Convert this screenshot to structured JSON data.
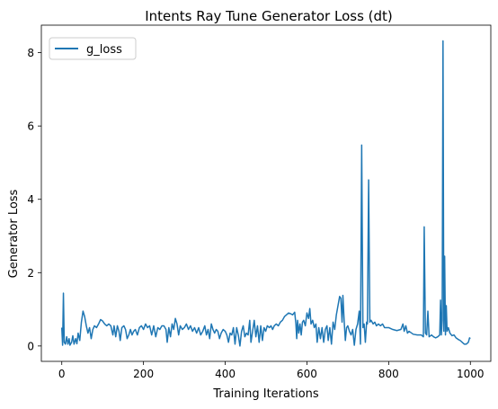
{
  "chart_data": {
    "type": "line",
    "title": "Intents Ray Tune Generator Loss (dt)",
    "xlabel": "Training Iterations",
    "ylabel": "Generator Loss",
    "xlim": [
      -50,
      1050
    ],
    "ylim": [
      -0.42,
      8.75
    ],
    "xticks": [
      0,
      200,
      400,
      600,
      800,
      1000
    ],
    "yticks": [
      0,
      2,
      4,
      6,
      8
    ],
    "grid": false,
    "legend_position": "top-left",
    "series": [
      {
        "name": "g_loss",
        "color": "#1f77b4",
        "points": [
          [
            0,
            0.5
          ],
          [
            2,
            0.02
          ],
          [
            4,
            1.44
          ],
          [
            6,
            0.1
          ],
          [
            9,
            0.05
          ],
          [
            12,
            0.25
          ],
          [
            15,
            0.05
          ],
          [
            18,
            0.2
          ],
          [
            20,
            0.02
          ],
          [
            24,
            0.1
          ],
          [
            27,
            0.28
          ],
          [
            30,
            0.05
          ],
          [
            34,
            0.2
          ],
          [
            37,
            0.06
          ],
          [
            40,
            0.35
          ],
          [
            44,
            0.15
          ],
          [
            48,
            0.65
          ],
          [
            52,
            0.95
          ],
          [
            56,
            0.8
          ],
          [
            60,
            0.55
          ],
          [
            64,
            0.35
          ],
          [
            68,
            0.5
          ],
          [
            72,
            0.2
          ],
          [
            76,
            0.45
          ],
          [
            80,
            0.55
          ],
          [
            85,
            0.5
          ],
          [
            90,
            0.6
          ],
          [
            95,
            0.72
          ],
          [
            100,
            0.68
          ],
          [
            105,
            0.6
          ],
          [
            110,
            0.55
          ],
          [
            115,
            0.6
          ],
          [
            120,
            0.55
          ],
          [
            125,
            0.3
          ],
          [
            128,
            0.55
          ],
          [
            132,
            0.25
          ],
          [
            136,
            0.55
          ],
          [
            140,
            0.4
          ],
          [
            143,
            0.15
          ],
          [
            147,
            0.5
          ],
          [
            152,
            0.55
          ],
          [
            156,
            0.45
          ],
          [
            160,
            0.2
          ],
          [
            164,
            0.3
          ],
          [
            168,
            0.45
          ],
          [
            172,
            0.3
          ],
          [
            176,
            0.4
          ],
          [
            180,
            0.45
          ],
          [
            185,
            0.3
          ],
          [
            190,
            0.5
          ],
          [
            195,
            0.55
          ],
          [
            200,
            0.45
          ],
          [
            205,
            0.6
          ],
          [
            210,
            0.5
          ],
          [
            215,
            0.55
          ],
          [
            220,
            0.3
          ],
          [
            225,
            0.55
          ],
          [
            230,
            0.25
          ],
          [
            235,
            0.5
          ],
          [
            240,
            0.45
          ],
          [
            245,
            0.55
          ],
          [
            250,
            0.55
          ],
          [
            255,
            0.45
          ],
          [
            258,
            0.1
          ],
          [
            262,
            0.5
          ],
          [
            266,
            0.25
          ],
          [
            270,
            0.6
          ],
          [
            274,
            0.45
          ],
          [
            278,
            0.75
          ],
          [
            282,
            0.6
          ],
          [
            286,
            0.3
          ],
          [
            290,
            0.55
          ],
          [
            295,
            0.45
          ],
          [
            300,
            0.5
          ],
          [
            305,
            0.6
          ],
          [
            310,
            0.45
          ],
          [
            315,
            0.55
          ],
          [
            320,
            0.4
          ],
          [
            325,
            0.5
          ],
          [
            330,
            0.35
          ],
          [
            335,
            0.5
          ],
          [
            340,
            0.3
          ],
          [
            345,
            0.4
          ],
          [
            350,
            0.55
          ],
          [
            354,
            0.3
          ],
          [
            358,
            0.45
          ],
          [
            362,
            0.2
          ],
          [
            366,
            0.6
          ],
          [
            370,
            0.45
          ],
          [
            374,
            0.35
          ],
          [
            378,
            0.45
          ],
          [
            382,
            0.4
          ],
          [
            386,
            0.2
          ],
          [
            390,
            0.35
          ],
          [
            395,
            0.45
          ],
          [
            400,
            0.4
          ],
          [
            404,
            0.3
          ],
          [
            408,
            0.1
          ],
          [
            412,
            0.35
          ],
          [
            416,
            0.3
          ],
          [
            420,
            0.5
          ],
          [
            424,
            0.05
          ],
          [
            428,
            0.5
          ],
          [
            432,
            0.3
          ],
          [
            436,
            0.0
          ],
          [
            440,
            0.4
          ],
          [
            444,
            0.55
          ],
          [
            448,
            0.25
          ],
          [
            452,
            0.35
          ],
          [
            456,
            0.3
          ],
          [
            460,
            0.7
          ],
          [
            463,
            0.1
          ],
          [
            467,
            0.4
          ],
          [
            471,
            0.7
          ],
          [
            475,
            0.25
          ],
          [
            479,
            0.55
          ],
          [
            483,
            0.1
          ],
          [
            487,
            0.55
          ],
          [
            491,
            0.15
          ],
          [
            495,
            0.5
          ],
          [
            499,
            0.4
          ],
          [
            503,
            0.55
          ],
          [
            508,
            0.5
          ],
          [
            512,
            0.55
          ],
          [
            516,
            0.45
          ],
          [
            520,
            0.55
          ],
          [
            525,
            0.6
          ],
          [
            530,
            0.55
          ],
          [
            535,
            0.65
          ],
          [
            540,
            0.7
          ],
          [
            545,
            0.8
          ],
          [
            550,
            0.85
          ],
          [
            555,
            0.9
          ],
          [
            560,
            0.88
          ],
          [
            565,
            0.85
          ],
          [
            570,
            0.92
          ],
          [
            573,
            0.6
          ],
          [
            575,
            0.2
          ],
          [
            577,
            0.7
          ],
          [
            580,
            0.35
          ],
          [
            583,
            0.6
          ],
          [
            586,
            0.3
          ],
          [
            589,
            0.65
          ],
          [
            592,
            0.7
          ],
          [
            596,
            0.55
          ],
          [
            600,
            0.9
          ],
          [
            604,
            0.75
          ],
          [
            607,
            1.02
          ],
          [
            610,
            0.6
          ],
          [
            614,
            0.7
          ],
          [
            618,
            0.5
          ],
          [
            622,
            0.6
          ],
          [
            625,
            0.1
          ],
          [
            629,
            0.5
          ],
          [
            633,
            0.2
          ],
          [
            637,
            0.5
          ],
          [
            641,
            0.1
          ],
          [
            645,
            0.45
          ],
          [
            649,
            0.55
          ],
          [
            652,
            0.15
          ],
          [
            656,
            0.5
          ],
          [
            660,
            0.05
          ],
          [
            664,
            0.65
          ],
          [
            668,
            0.45
          ],
          [
            672,
            0.85
          ],
          [
            676,
            1.1
          ],
          [
            680,
            1.35
          ],
          [
            683,
            1.3
          ],
          [
            686,
            0.65
          ],
          [
            688,
            1.38
          ],
          [
            691,
            0.7
          ],
          [
            694,
            0.15
          ],
          [
            697,
            0.5
          ],
          [
            700,
            0.55
          ],
          [
            704,
            0.4
          ],
          [
            708,
            0.3
          ],
          [
            712,
            0.45
          ],
          [
            716,
            0.02
          ],
          [
            720,
            0.45
          ],
          [
            724,
            0.6
          ],
          [
            728,
            0.95
          ],
          [
            731,
            0.05
          ],
          [
            734,
            5.48
          ],
          [
            737,
            0.5
          ],
          [
            740,
            0.6
          ],
          [
            743,
            0.1
          ],
          [
            746,
            0.65
          ],
          [
            748,
            0.6
          ],
          [
            751,
            4.53
          ],
          [
            754,
            0.65
          ],
          [
            757,
            0.7
          ],
          [
            762,
            0.6
          ],
          [
            766,
            0.65
          ],
          [
            770,
            0.55
          ],
          [
            775,
            0.6
          ],
          [
            780,
            0.55
          ],
          [
            785,
            0.6
          ],
          [
            790,
            0.5
          ],
          [
            800,
            0.5
          ],
          [
            810,
            0.45
          ],
          [
            820,
            0.42
          ],
          [
            830,
            0.45
          ],
          [
            835,
            0.6
          ],
          [
            838,
            0.4
          ],
          [
            842,
            0.55
          ],
          [
            846,
            0.35
          ],
          [
            850,
            0.4
          ],
          [
            860,
            0.32
          ],
          [
            870,
            0.3
          ],
          [
            880,
            0.3
          ],
          [
            885,
            0.25
          ],
          [
            887,
            3.25
          ],
          [
            890,
            0.35
          ],
          [
            893,
            0.3
          ],
          [
            896,
            0.95
          ],
          [
            899,
            0.25
          ],
          [
            905,
            0.3
          ],
          [
            910,
            0.25
          ],
          [
            915,
            0.22
          ],
          [
            920,
            0.25
          ],
          [
            925,
            0.3
          ],
          [
            927,
            1.25
          ],
          [
            929,
            0.3
          ],
          [
            931,
            0.7
          ],
          [
            933,
            8.32
          ],
          [
            935,
            0.4
          ],
          [
            937,
            2.45
          ],
          [
            939,
            0.3
          ],
          [
            941,
            1.1
          ],
          [
            943,
            0.4
          ],
          [
            946,
            0.5
          ],
          [
            950,
            0.35
          ],
          [
            955,
            0.28
          ],
          [
            960,
            0.3
          ],
          [
            965,
            0.22
          ],
          [
            970,
            0.18
          ],
          [
            975,
            0.15
          ],
          [
            980,
            0.1
          ],
          [
            985,
            0.05
          ],
          [
            990,
            0.05
          ],
          [
            995,
            0.1
          ],
          [
            998,
            0.22
          ],
          [
            1000,
            0.2
          ]
        ]
      }
    ]
  }
}
